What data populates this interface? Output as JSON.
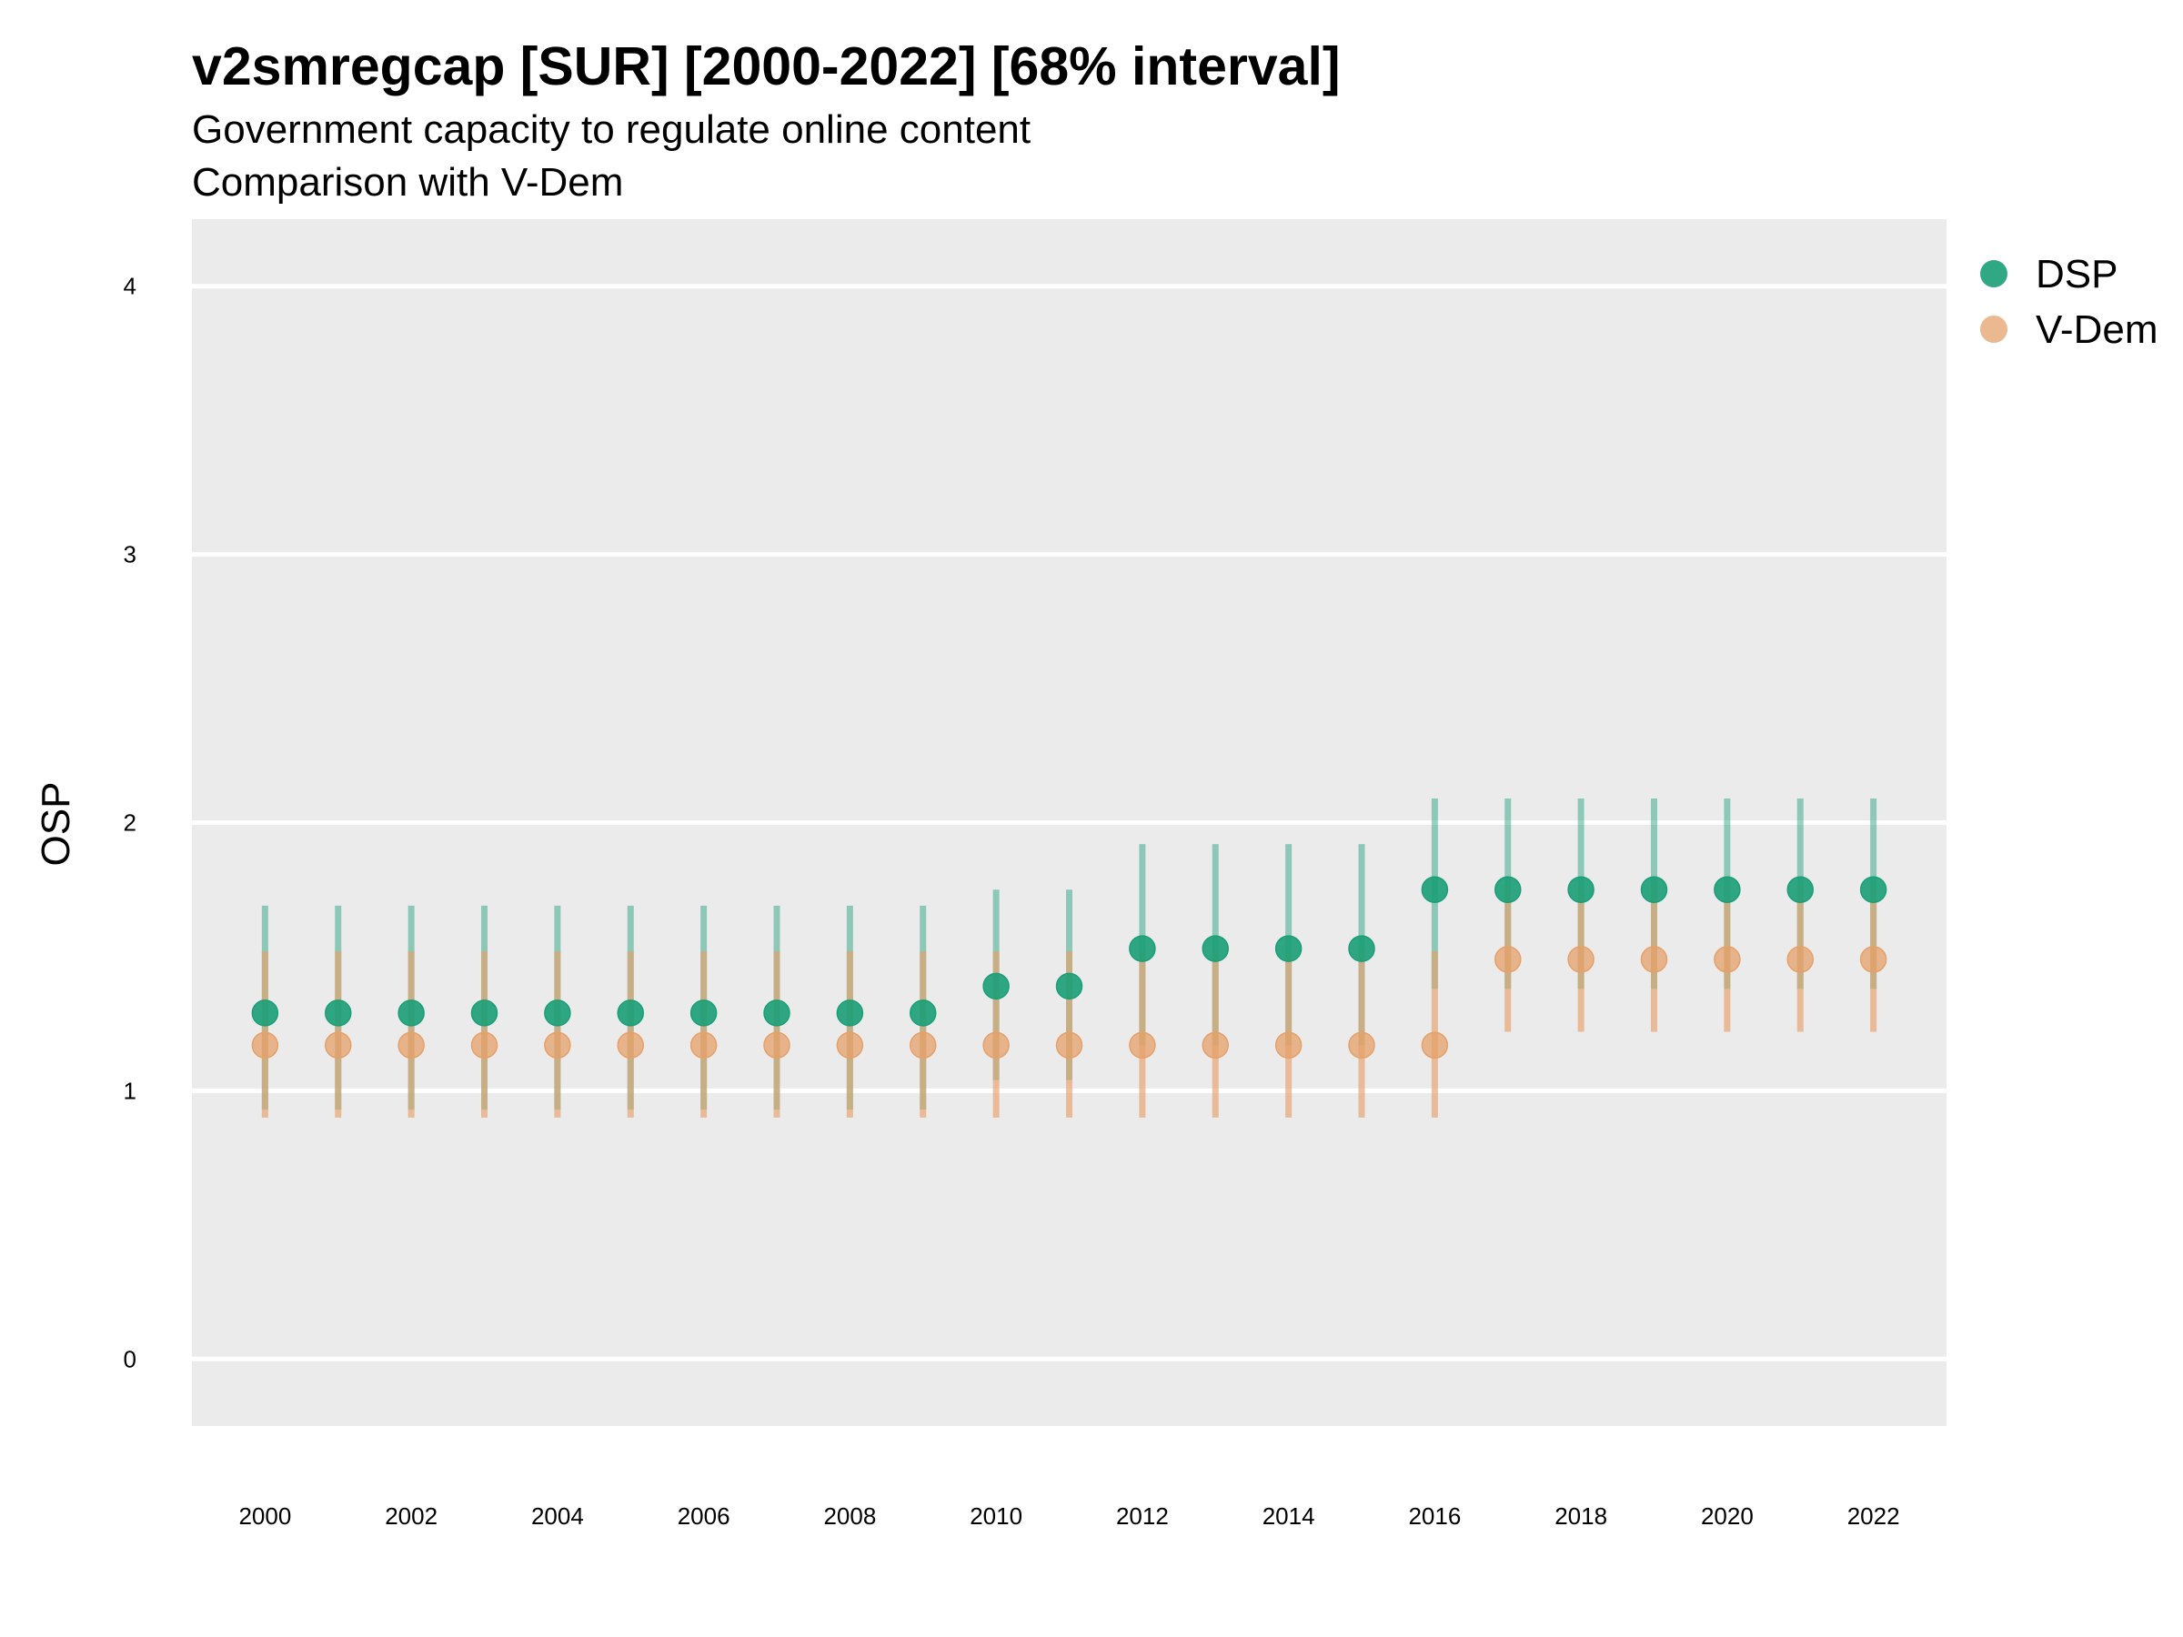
{
  "chart_data": {
    "type": "scatter",
    "title": "v2smregcap [SUR] [2000-2022] [68% interval]",
    "subtitle": [
      "Government capacity to regulate online content",
      "Comparison with V-Dem"
    ],
    "xlabel": "",
    "ylabel": "OSP",
    "xlim": [
      1999.0,
      2023.0
    ],
    "ylim": [
      -0.25,
      4.25
    ],
    "x_ticks": [
      2000,
      2002,
      2004,
      2006,
      2008,
      2010,
      2012,
      2014,
      2016,
      2018,
      2020,
      2022
    ],
    "y_ticks": [
      0,
      1,
      2,
      3,
      4
    ],
    "grid": true,
    "legend_position": "right",
    "x": [
      2000,
      2001,
      2002,
      2003,
      2004,
      2005,
      2006,
      2007,
      2008,
      2009,
      2010,
      2011,
      2012,
      2013,
      2014,
      2015,
      2016,
      2017,
      2018,
      2019,
      2020,
      2021,
      2022
    ],
    "series": [
      {
        "name": "DSP",
        "color": "#1b9e77",
        "values": [
          1.29,
          1.29,
          1.29,
          1.29,
          1.29,
          1.29,
          1.29,
          1.29,
          1.29,
          1.29,
          1.39,
          1.39,
          1.53,
          1.53,
          1.53,
          1.53,
          1.75,
          1.75,
          1.75,
          1.75,
          1.75,
          1.75,
          1.75
        ],
        "lower": [
          0.93,
          0.93,
          0.93,
          0.93,
          0.93,
          0.93,
          0.93,
          0.93,
          0.93,
          0.93,
          1.04,
          1.04,
          1.17,
          1.17,
          1.17,
          1.17,
          1.38,
          1.38,
          1.38,
          1.38,
          1.38,
          1.38,
          1.38
        ],
        "upper": [
          1.69,
          1.69,
          1.69,
          1.69,
          1.69,
          1.69,
          1.69,
          1.69,
          1.69,
          1.69,
          1.75,
          1.75,
          1.92,
          1.92,
          1.92,
          1.92,
          2.09,
          2.09,
          2.09,
          2.09,
          2.09,
          2.09,
          2.09
        ]
      },
      {
        "name": "V-Dem",
        "color": "#e6a06a",
        "values": [
          1.17,
          1.17,
          1.17,
          1.17,
          1.17,
          1.17,
          1.17,
          1.17,
          1.17,
          1.17,
          1.17,
          1.17,
          1.17,
          1.17,
          1.17,
          1.17,
          1.17,
          1.49,
          1.49,
          1.49,
          1.49,
          1.49,
          1.49
        ],
        "lower": [
          0.9,
          0.9,
          0.9,
          0.9,
          0.9,
          0.9,
          0.9,
          0.9,
          0.9,
          0.9,
          0.9,
          0.9,
          0.9,
          0.9,
          0.9,
          0.9,
          0.9,
          1.22,
          1.22,
          1.22,
          1.22,
          1.22,
          1.22
        ],
        "upper": [
          1.52,
          1.52,
          1.52,
          1.52,
          1.52,
          1.52,
          1.52,
          1.52,
          1.52,
          1.52,
          1.52,
          1.52,
          1.52,
          1.52,
          1.52,
          1.52,
          1.52,
          1.77,
          1.77,
          1.77,
          1.77,
          1.77,
          1.77
        ]
      }
    ]
  }
}
